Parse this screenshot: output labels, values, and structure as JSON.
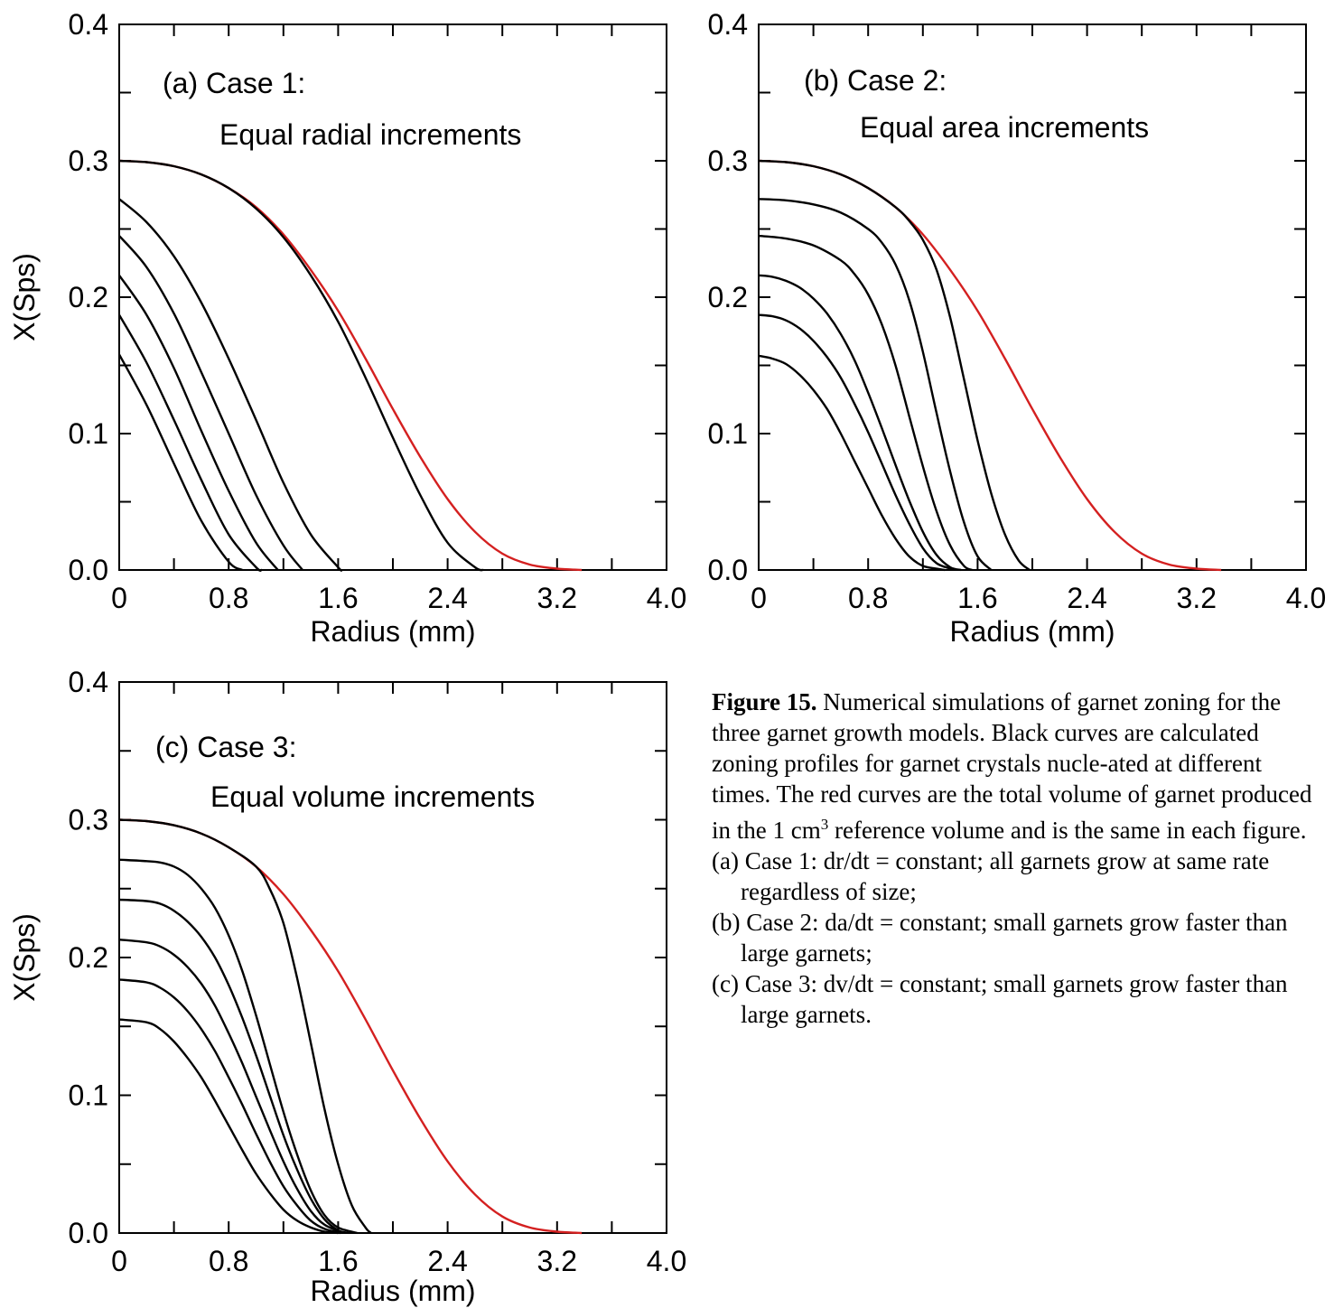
{
  "caption": {
    "title": "Figure 15.",
    "body_part1": " Numerical simulations of garnet zoning for the three garnet growth models. Black curves are calculated zoning profiles for garnet crystals nucle-ated at different times. The red curves are the total volume of garnet produced in the 1 cm",
    "superscript": "3",
    "body_part2": " reference volume and is the same in each figure.",
    "items": [
      "(a) Case 1: dr/dt = constant; all garnets grow at same rate regardless of size;",
      "(b) Case 2: da/dt = constant; small garnets grow faster than large garnets;",
      "(c) Case 3: dv/dt = constant; small garnets grow faster than large garnets."
    ]
  },
  "colors": {
    "total_curve": "#d42020",
    "profile_curves": "#000000"
  },
  "chart_data": [
    {
      "type": "line",
      "panel_label": "(a) Case 1:",
      "panel_sublabel": "Equal radial increments",
      "xlabel": "Radius (mm)",
      "ylabel": "X(Sps)",
      "xlim": [
        0,
        4.0
      ],
      "ylim": [
        0,
        0.4
      ],
      "xticks": [
        "0",
        "0.8",
        "1.6",
        "2.4",
        "3.2",
        "4.0"
      ],
      "yticks": [
        "0.0",
        "0.1",
        "0.2",
        "0.3",
        "0.4"
      ],
      "series": [
        {
          "color": "red",
          "x": [
            0,
            0.2,
            0.4,
            0.6,
            0.8,
            1.0,
            1.2,
            1.4,
            1.6,
            1.8,
            2.0,
            2.2,
            2.4,
            2.6,
            2.8,
            3.0,
            3.2,
            3.38
          ],
          "y": [
            0.3,
            0.299,
            0.296,
            0.29,
            0.28,
            0.266,
            0.246,
            0.22,
            0.19,
            0.155,
            0.118,
            0.083,
            0.052,
            0.028,
            0.012,
            0.004,
            0.001,
            0
          ]
        },
        {
          "color": "black",
          "x": [
            0,
            0.2,
            0.4,
            0.6,
            0.8,
            1.0,
            1.2,
            1.4,
            1.6,
            1.8,
            2.0,
            2.2,
            2.4,
            2.6,
            2.66
          ],
          "y": [
            0.3,
            0.299,
            0.296,
            0.29,
            0.28,
            0.265,
            0.244,
            0.216,
            0.182,
            0.141,
            0.097,
            0.055,
            0.02,
            0.002,
            0
          ]
        },
        {
          "color": "black",
          "x": [
            0,
            0.2,
            0.4,
            0.6,
            0.8,
            1.0,
            1.2,
            1.4,
            1.6,
            1.62
          ],
          "y": [
            0.272,
            0.255,
            0.23,
            0.196,
            0.155,
            0.11,
            0.064,
            0.026,
            0.002,
            0
          ]
        },
        {
          "color": "black",
          "x": [
            0,
            0.2,
            0.4,
            0.6,
            0.8,
            1.0,
            1.2,
            1.34
          ],
          "y": [
            0.245,
            0.222,
            0.188,
            0.145,
            0.1,
            0.055,
            0.018,
            0
          ]
        },
        {
          "color": "black",
          "x": [
            0,
            0.2,
            0.4,
            0.6,
            0.8,
            1.0,
            1.16
          ],
          "y": [
            0.216,
            0.187,
            0.148,
            0.102,
            0.058,
            0.02,
            0
          ]
        },
        {
          "color": "black",
          "x": [
            0,
            0.2,
            0.4,
            0.6,
            0.8,
            1.0,
            1.04
          ],
          "y": [
            0.187,
            0.152,
            0.11,
            0.066,
            0.026,
            0.002,
            0
          ]
        },
        {
          "color": "black",
          "x": [
            0,
            0.2,
            0.4,
            0.6,
            0.8,
            0.9
          ],
          "y": [
            0.158,
            0.121,
            0.078,
            0.036,
            0.006,
            0
          ]
        }
      ]
    },
    {
      "type": "line",
      "panel_label": "(b) Case 2:",
      "panel_sublabel": "Equal area increments",
      "xlabel": "Radius (mm)",
      "ylabel": "",
      "xlim": [
        0,
        4.0
      ],
      "ylim": [
        0,
        0.4
      ],
      "xticks": [
        "0",
        "0.8",
        "1.6",
        "2.4",
        "3.2",
        "4.0"
      ],
      "yticks": [
        "0.0",
        "0.1",
        "0.2",
        "0.3",
        "0.4"
      ],
      "series": [
        {
          "color": "red",
          "x": [
            0,
            0.2,
            0.4,
            0.6,
            0.8,
            1.0,
            1.2,
            1.4,
            1.6,
            1.8,
            2.0,
            2.2,
            2.4,
            2.6,
            2.8,
            3.0,
            3.2,
            3.38
          ],
          "y": [
            0.3,
            0.299,
            0.296,
            0.29,
            0.28,
            0.266,
            0.246,
            0.22,
            0.19,
            0.155,
            0.118,
            0.083,
            0.052,
            0.028,
            0.012,
            0.004,
            0.001,
            0
          ]
        },
        {
          "color": "black",
          "x": [
            0,
            0.2,
            0.4,
            0.6,
            0.8,
            1.0,
            1.1,
            1.2,
            1.3,
            1.4,
            1.5,
            1.6,
            1.7,
            1.8,
            1.9,
            1.98
          ],
          "y": [
            0.3,
            0.299,
            0.296,
            0.29,
            0.28,
            0.266,
            0.256,
            0.242,
            0.22,
            0.185,
            0.14,
            0.095,
            0.056,
            0.026,
            0.007,
            0
          ]
        },
        {
          "color": "black",
          "x": [
            0,
            0.2,
            0.4,
            0.6,
            0.8,
            0.9,
            1.0,
            1.1,
            1.2,
            1.3,
            1.4,
            1.5,
            1.6,
            1.7
          ],
          "y": [
            0.272,
            0.271,
            0.268,
            0.262,
            0.25,
            0.24,
            0.224,
            0.198,
            0.16,
            0.115,
            0.072,
            0.035,
            0.01,
            0
          ]
        },
        {
          "color": "black",
          "x": [
            0,
            0.2,
            0.4,
            0.6,
            0.7,
            0.8,
            0.9,
            1.0,
            1.1,
            1.2,
            1.3,
            1.4,
            1.5,
            1.56
          ],
          "y": [
            0.245,
            0.243,
            0.238,
            0.227,
            0.217,
            0.202,
            0.18,
            0.15,
            0.113,
            0.076,
            0.043,
            0.018,
            0.003,
            0
          ]
        },
        {
          "color": "black",
          "x": [
            0,
            0.1,
            0.2,
            0.3,
            0.4,
            0.5,
            0.6,
            0.7,
            0.8,
            0.9,
            1.0,
            1.1,
            1.2,
            1.3,
            1.4,
            1.48
          ],
          "y": [
            0.216,
            0.215,
            0.212,
            0.207,
            0.199,
            0.188,
            0.173,
            0.154,
            0.13,
            0.104,
            0.077,
            0.051,
            0.028,
            0.011,
            0.002,
            0
          ]
        },
        {
          "color": "black",
          "x": [
            0,
            0.1,
            0.2,
            0.3,
            0.4,
            0.5,
            0.6,
            0.7,
            0.8,
            0.9,
            1.0,
            1.1,
            1.2,
            1.3,
            1.4,
            1.42
          ],
          "y": [
            0.187,
            0.186,
            0.183,
            0.177,
            0.168,
            0.156,
            0.141,
            0.122,
            0.101,
            0.078,
            0.055,
            0.034,
            0.016,
            0.005,
            0.001,
            0
          ]
        },
        {
          "color": "black",
          "x": [
            0,
            0.1,
            0.2,
            0.3,
            0.4,
            0.5,
            0.6,
            0.7,
            0.8,
            0.9,
            1.0,
            1.1,
            1.2,
            1.3,
            1.36
          ],
          "y": [
            0.157,
            0.155,
            0.151,
            0.143,
            0.132,
            0.118,
            0.1,
            0.08,
            0.06,
            0.04,
            0.023,
            0.01,
            0.003,
            0.001,
            0
          ]
        }
      ]
    },
    {
      "type": "line",
      "panel_label": "(c) Case 3:",
      "panel_sublabel": "Equal volume increments",
      "xlabel": "Radius (mm)",
      "ylabel": "X(Sps)",
      "xlim": [
        0,
        4.0
      ],
      "ylim": [
        0,
        0.4
      ],
      "xticks": [
        "0",
        "0.8",
        "1.6",
        "2.4",
        "3.2",
        "4.0"
      ],
      "yticks": [
        "0.0",
        "0.1",
        "0.2",
        "0.3",
        "0.4"
      ],
      "series": [
        {
          "color": "red",
          "x": [
            0,
            0.2,
            0.4,
            0.6,
            0.8,
            1.0,
            1.2,
            1.4,
            1.6,
            1.8,
            2.0,
            2.2,
            2.4,
            2.6,
            2.8,
            3.0,
            3.2,
            3.38
          ],
          "y": [
            0.3,
            0.299,
            0.296,
            0.29,
            0.28,
            0.266,
            0.246,
            0.22,
            0.19,
            0.155,
            0.118,
            0.083,
            0.052,
            0.028,
            0.012,
            0.004,
            0.001,
            0
          ]
        },
        {
          "color": "black",
          "x": [
            0,
            0.2,
            0.4,
            0.6,
            0.8,
            1.0,
            1.1,
            1.2,
            1.3,
            1.4,
            1.5,
            1.6,
            1.7,
            1.8,
            1.84
          ],
          "y": [
            0.3,
            0.299,
            0.296,
            0.29,
            0.28,
            0.266,
            0.25,
            0.225,
            0.185,
            0.138,
            0.09,
            0.05,
            0.02,
            0.004,
            0
          ]
        },
        {
          "color": "black",
          "x": [
            0,
            0.2,
            0.3,
            0.4,
            0.5,
            0.6,
            0.7,
            0.8,
            0.9,
            1.0,
            1.1,
            1.2,
            1.3,
            1.4,
            1.5,
            1.6,
            1.74
          ],
          "y": [
            0.271,
            0.27,
            0.269,
            0.266,
            0.26,
            0.25,
            0.236,
            0.216,
            0.19,
            0.158,
            0.123,
            0.088,
            0.057,
            0.031,
            0.013,
            0.004,
            0
          ]
        },
        {
          "color": "black",
          "x": [
            0,
            0.2,
            0.3,
            0.4,
            0.5,
            0.6,
            0.7,
            0.8,
            0.9,
            1.0,
            1.1,
            1.2,
            1.3,
            1.4,
            1.5,
            1.6,
            1.68
          ],
          "y": [
            0.242,
            0.241,
            0.239,
            0.234,
            0.226,
            0.215,
            0.2,
            0.18,
            0.156,
            0.129,
            0.1,
            0.071,
            0.046,
            0.025,
            0.01,
            0.002,
            0
          ]
        },
        {
          "color": "black",
          "x": [
            0,
            0.2,
            0.3,
            0.4,
            0.5,
            0.6,
            0.7,
            0.8,
            0.9,
            1.0,
            1.1,
            1.2,
            1.3,
            1.4,
            1.5,
            1.64
          ],
          "y": [
            0.213,
            0.211,
            0.208,
            0.202,
            0.193,
            0.181,
            0.165,
            0.145,
            0.123,
            0.099,
            0.075,
            0.052,
            0.032,
            0.016,
            0.006,
            0
          ]
        },
        {
          "color": "black",
          "x": [
            0,
            0.2,
            0.3,
            0.4,
            0.5,
            0.6,
            0.7,
            0.8,
            0.9,
            1.0,
            1.1,
            1.2,
            1.3,
            1.4,
            1.5,
            1.62
          ],
          "y": [
            0.184,
            0.182,
            0.178,
            0.171,
            0.161,
            0.148,
            0.132,
            0.113,
            0.093,
            0.072,
            0.052,
            0.034,
            0.02,
            0.009,
            0.003,
            0
          ]
        },
        {
          "color": "black",
          "x": [
            0,
            0.2,
            0.3,
            0.4,
            0.5,
            0.6,
            0.7,
            0.8,
            0.9,
            1.0,
            1.1,
            1.2,
            1.3,
            1.4,
            1.5,
            1.6
          ],
          "y": [
            0.155,
            0.153,
            0.148,
            0.139,
            0.127,
            0.113,
            0.096,
            0.078,
            0.06,
            0.043,
            0.029,
            0.017,
            0.009,
            0.004,
            0.001,
            0
          ]
        }
      ]
    }
  ]
}
